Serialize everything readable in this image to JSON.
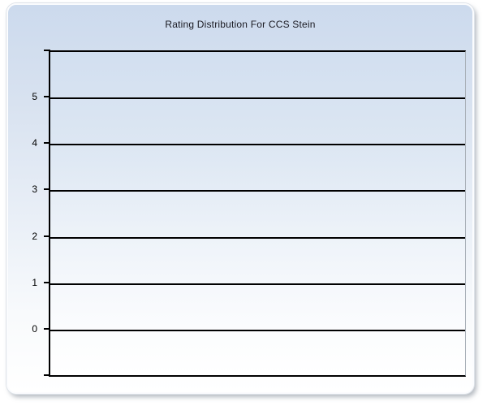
{
  "window": {
    "background": "#ffffff"
  },
  "panel": {
    "bg_top": "#ccdaed",
    "bg_bottom": "#ffffff",
    "border_color": "#fbfcfe"
  },
  "chart": {
    "title": "Rating Distribution For CCS Stein",
    "title_color": "#1a1a22"
  },
  "chart_data": {
    "type": "bar",
    "title": "Rating Distribution For CCS Stein",
    "categories": [],
    "series": [],
    "values": [],
    "xlabel": "",
    "ylabel": "",
    "ylim": [
      -1,
      6
    ],
    "yticks": [
      5,
      4,
      3,
      2,
      1,
      0
    ],
    "ytick_step": 1,
    "grid": "horizontal",
    "gridline_color": "#000000",
    "axis_color": "#000000",
    "legend": "none",
    "plot_bg_top": "#d2dff0",
    "plot_bg_bottom": "#ffffff"
  }
}
